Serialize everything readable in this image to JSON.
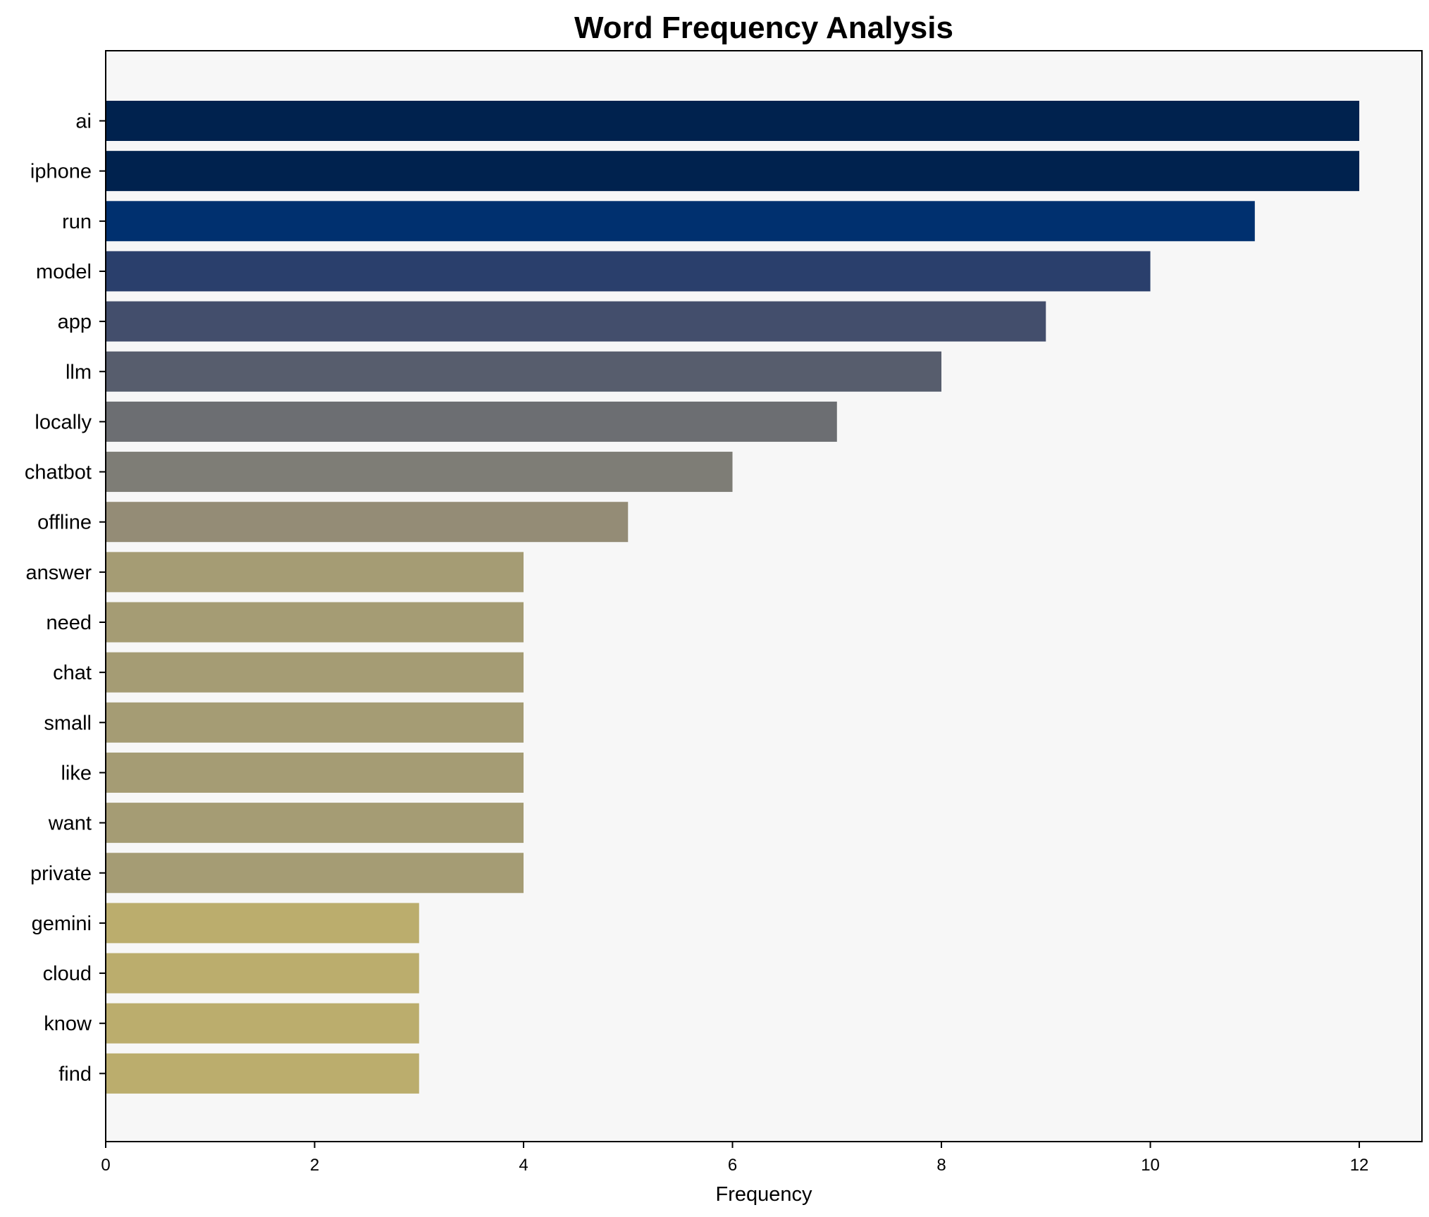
{
  "chart_data": {
    "type": "bar",
    "orientation": "horizontal",
    "title": "Word Frequency Analysis",
    "xlabel": "Frequency",
    "ylabel": "",
    "xlim": [
      0,
      12.6
    ],
    "xticks": [
      0,
      2,
      4,
      6,
      8,
      10,
      12
    ],
    "grid": false,
    "legend": "none",
    "background_color": "#f7f7f7",
    "categories": [
      "ai",
      "iphone",
      "run",
      "model",
      "app",
      "llm",
      "locally",
      "chatbot",
      "offline",
      "answer",
      "need",
      "chat",
      "small",
      "like",
      "want",
      "private",
      "gemini",
      "cloud",
      "know",
      "find"
    ],
    "values": [
      12,
      12,
      11,
      10,
      9,
      8,
      7,
      6,
      5,
      4,
      4,
      4,
      4,
      4,
      4,
      4,
      3,
      3,
      3,
      3
    ],
    "colors": [
      "#00224e",
      "#00224e",
      "#00306f",
      "#2a3f6c",
      "#434e6c",
      "#575d6d",
      "#6c6e72",
      "#7e7d76",
      "#948c76",
      "#a59c74",
      "#a59c74",
      "#a59c74",
      "#a59c74",
      "#a59c74",
      "#a59c74",
      "#a59c74",
      "#bbad6d",
      "#bbad6d",
      "#bbad6d",
      "#bbad6d"
    ]
  }
}
